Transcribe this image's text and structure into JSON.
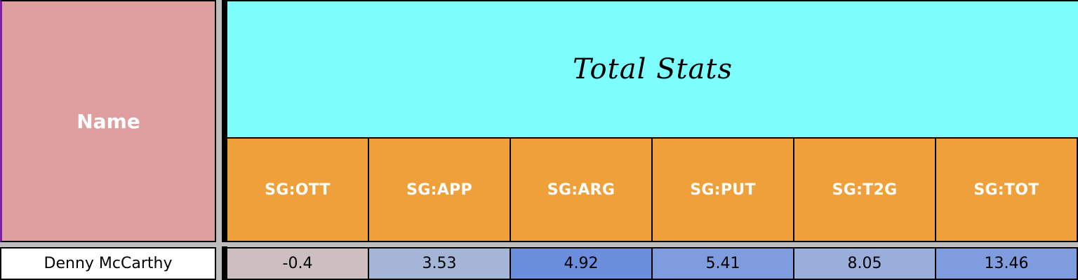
{
  "header": {
    "name_label": "Name",
    "title": "Total Stats",
    "columns": [
      "SG:OTT",
      "SG:APP",
      "SG:ARG",
      "SG:PUT",
      "SG:T2G",
      "SG:TOT"
    ]
  },
  "rows": [
    {
      "name": "Denny McCarthy",
      "values": [
        "-0.4",
        "3.53",
        "4.92",
        "5.41",
        "8.05",
        "13.46"
      ],
      "colors": [
        "#cdbfbf",
        "#a5b5d8",
        "#6b8fdd",
        "#7f9dde",
        "#9aaedb",
        "#7f9dde"
      ]
    }
  ],
  "colors": {
    "name_header": "#df9f9f",
    "title_bg": "#7dfdfc",
    "stat_header_bg": "#f0a03a",
    "header_text": "#ffffff"
  }
}
